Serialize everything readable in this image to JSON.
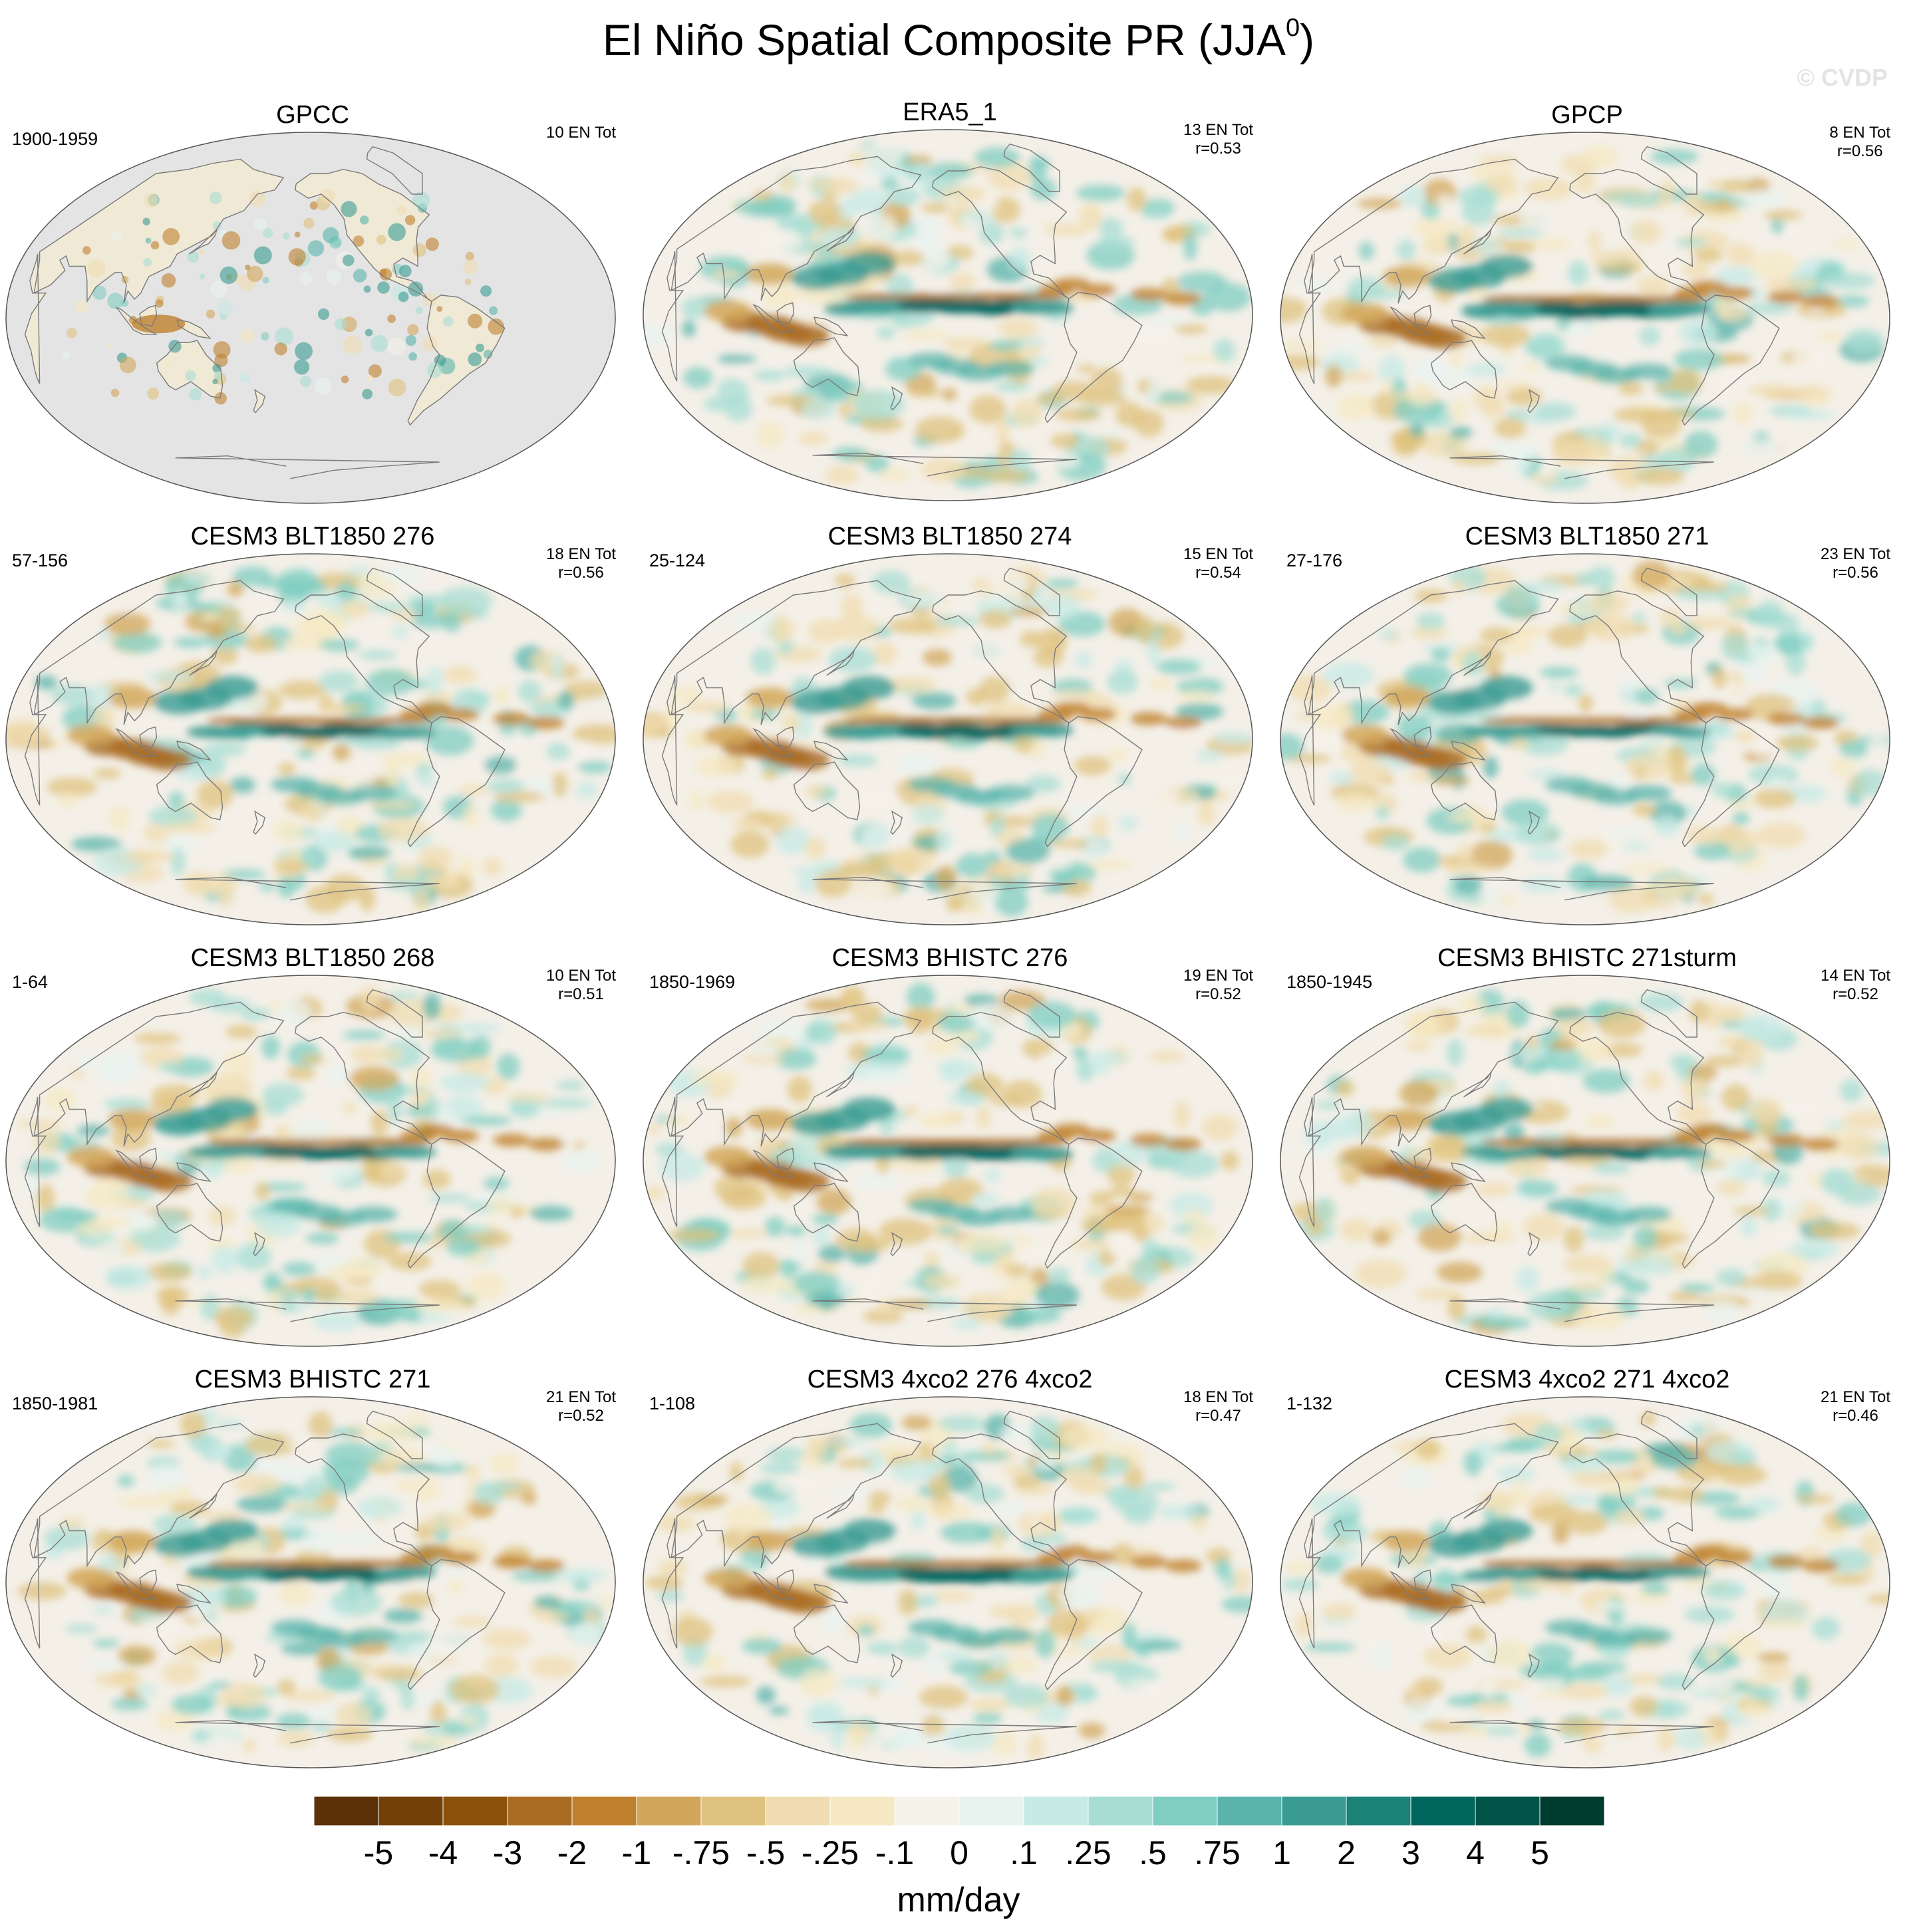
{
  "title_main": "El Niño Spatial Composite PR (JJA",
  "title_sup": "0",
  "title_close": ")",
  "watermark": "© CVDP",
  "units": "mm/day",
  "colorbar": {
    "colors": [
      "#5b3108",
      "#744009",
      "#8c510a",
      "#aa6c23",
      "#bf812d",
      "#d2a75b",
      "#dfc27d",
      "#f0dcb0",
      "#f6e8c3",
      "#f5f2ea",
      "#e8f3f0",
      "#c7eae5",
      "#a8ddd4",
      "#80cdc1",
      "#5ab4ac",
      "#3a9b92",
      "#1c8177",
      "#01665e",
      "#005548",
      "#003c30"
    ],
    "labels": [
      "-5",
      "-4",
      "-3",
      "-2",
      "-1",
      "-.75",
      "-.5",
      "-.25",
      "-.1",
      "0",
      ".1",
      ".25",
      ".5",
      ".75",
      "1",
      "2",
      "3",
      "4",
      "5"
    ]
  },
  "panels": [
    {
      "title": "GPCC",
      "years": "1900-1959",
      "stats": [
        "10 EN Tot",
        ""
      ],
      "kind": "land"
    },
    {
      "title": "ERA5_1",
      "years": "",
      "stats": [
        "13 EN Tot",
        "r=0.53"
      ],
      "kind": "full"
    },
    {
      "title": "GPCP",
      "years": "",
      "stats": [
        "8 EN Tot",
        "r=0.56"
      ],
      "kind": "full"
    },
    {
      "title": "CESM3 BLT1850 276",
      "years": "57-156",
      "stats": [
        "18 EN Tot",
        "r=0.56"
      ],
      "kind": "full"
    },
    {
      "title": "CESM3 BLT1850 274",
      "years": "25-124",
      "stats": [
        "15 EN Tot",
        "r=0.54"
      ],
      "kind": "full"
    },
    {
      "title": "CESM3 BLT1850 271",
      "years": "27-176",
      "stats": [
        "23 EN Tot",
        "r=0.56"
      ],
      "kind": "full"
    },
    {
      "title": "CESM3 BLT1850 268",
      "years": "1-64",
      "stats": [
        "10 EN Tot",
        "r=0.51"
      ],
      "kind": "full"
    },
    {
      "title": "CESM3 BHISTC 276",
      "years": "1850-1969",
      "stats": [
        "19 EN Tot",
        "r=0.52"
      ],
      "kind": "full"
    },
    {
      "title": "CESM3 BHISTC 271sturm",
      "years": "1850-1945",
      "stats": [
        "14 EN Tot",
        "r=0.52"
      ],
      "kind": "full"
    },
    {
      "title": "CESM3 BHISTC 271",
      "years": "1850-1981",
      "stats": [
        "21 EN Tot",
        "r=0.52"
      ],
      "kind": "full"
    },
    {
      "title": "CESM3 4xco2 276 4xco2",
      "years": "1-108",
      "stats": [
        "18 EN Tot",
        "r=0.47"
      ],
      "kind": "full"
    },
    {
      "title": "CESM3 4xco2 271 4xco2",
      "years": "1-132",
      "stats": [
        "21 EN Tot",
        "r=0.46"
      ],
      "kind": "full"
    }
  ]
}
